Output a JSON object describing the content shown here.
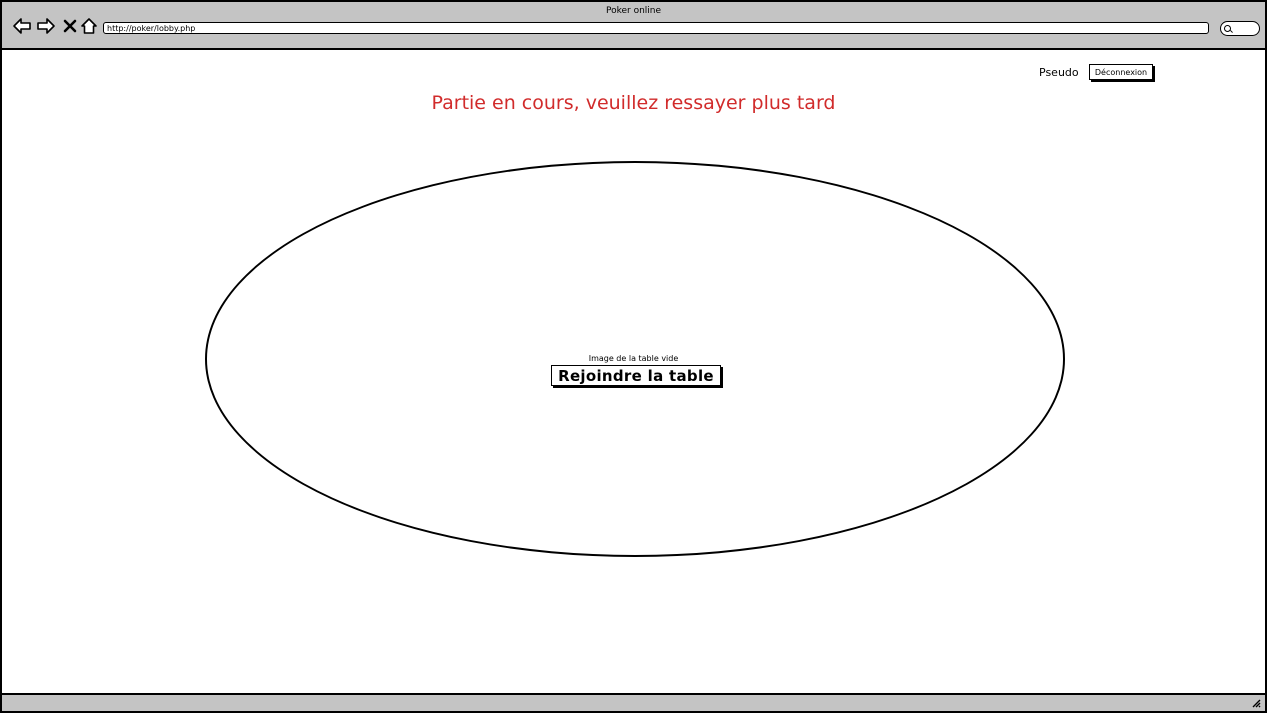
{
  "window": {
    "title": "Poker online"
  },
  "browser": {
    "url": "http://poker/lobby.php"
  },
  "header": {
    "user_label": "Pseudo",
    "logout_label": "Déconnexion"
  },
  "main": {
    "status_message": "Partie en cours, veuillez ressayer plus tard",
    "table_caption": "Image de la table vide",
    "join_label": "Rejoindre la table"
  },
  "colors": {
    "status_text": "#d12b2b",
    "chrome": "#c4c4c4"
  },
  "icons": [
    "back-arrow-icon",
    "forward-arrow-icon",
    "close-icon",
    "home-icon",
    "search-icon",
    "resize-grip-icon"
  ]
}
